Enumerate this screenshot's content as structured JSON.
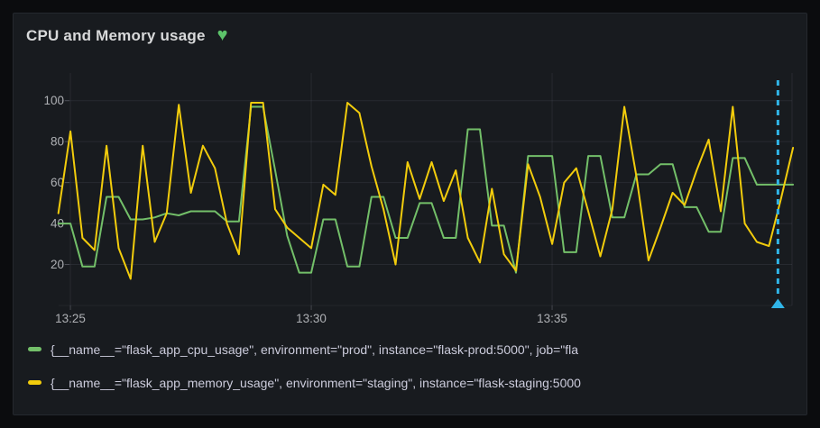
{
  "panel": {
    "title": "CPU and Memory usage",
    "heart_icon": {
      "glyph": "♥",
      "color": "#5cc36a"
    }
  },
  "colors": {
    "page_background": "#0b0c0e",
    "panel_background": "#181b1f",
    "panel_border": "#25282e",
    "title_text": "#d8d9da",
    "axis_text": "#aeb0b4",
    "legend_text": "#ccccdc",
    "grid": "rgba(204,204,220,0.09)",
    "series_green": "#73bf69",
    "series_yellow": "#f2cc0c",
    "annotation_cyan": "#30b5e8"
  },
  "chart_data": {
    "type": "line",
    "title": "CPU and Memory usage",
    "xlabel": "",
    "ylabel": "",
    "x_start_time": "13:24:45",
    "x_interval_seconds": 15,
    "ylim": [
      0,
      110
    ],
    "y_ticks": [
      20,
      40,
      60,
      80,
      100
    ],
    "x_ticks": [
      {
        "label": "13:25",
        "index": 1
      },
      {
        "label": "13:30",
        "index": 21
      },
      {
        "label": "13:35",
        "index": 41
      }
    ],
    "grid": true,
    "legend_position": "bottom",
    "series": [
      {
        "name": "flask_app_cpu_usage (prod)",
        "label": "{__name__=\"flask_app_cpu_usage\", environment=\"prod\", instance=\"flask-prod:5000\", job=\"fla",
        "color": "#73bf69",
        "values": [
          40,
          40,
          19,
          19,
          53,
          53,
          42,
          42,
          43,
          45,
          44,
          46,
          46,
          46,
          41,
          41,
          97,
          97,
          66,
          34,
          16,
          16,
          42,
          42,
          19,
          19,
          53,
          53,
          33,
          33,
          50,
          50,
          33,
          33,
          86,
          86,
          39,
          39,
          16,
          73,
          73,
          73,
          26,
          26,
          73,
          73,
          43,
          43,
          64,
          64,
          69,
          69,
          48,
          48,
          36,
          36,
          72,
          72,
          59,
          59,
          59,
          59
        ]
      },
      {
        "name": "flask_app_memory_usage (staging)",
        "label": "{__name__=\"flask_app_memory_usage\", environment=\"staging\", instance=\"flask-staging:5000",
        "color": "#f2cc0c",
        "values": [
          45,
          85,
          33,
          27,
          78,
          28,
          13,
          78,
          31,
          45,
          98,
          55,
          78,
          67,
          40,
          25,
          99,
          99,
          47,
          38,
          33,
          28,
          59,
          54,
          99,
          94,
          68,
          47,
          20,
          70,
          52,
          70,
          51,
          66,
          33,
          21,
          57,
          25,
          17,
          69,
          53,
          30,
          60,
          67,
          46,
          24,
          47,
          97,
          63,
          22,
          38,
          55,
          49,
          66,
          81,
          46,
          97,
          40,
          31,
          29,
          52,
          77
        ]
      }
    ],
    "annotation": {
      "type": "vertical-line",
      "index": 59.75,
      "color": "#30b5e8"
    }
  }
}
